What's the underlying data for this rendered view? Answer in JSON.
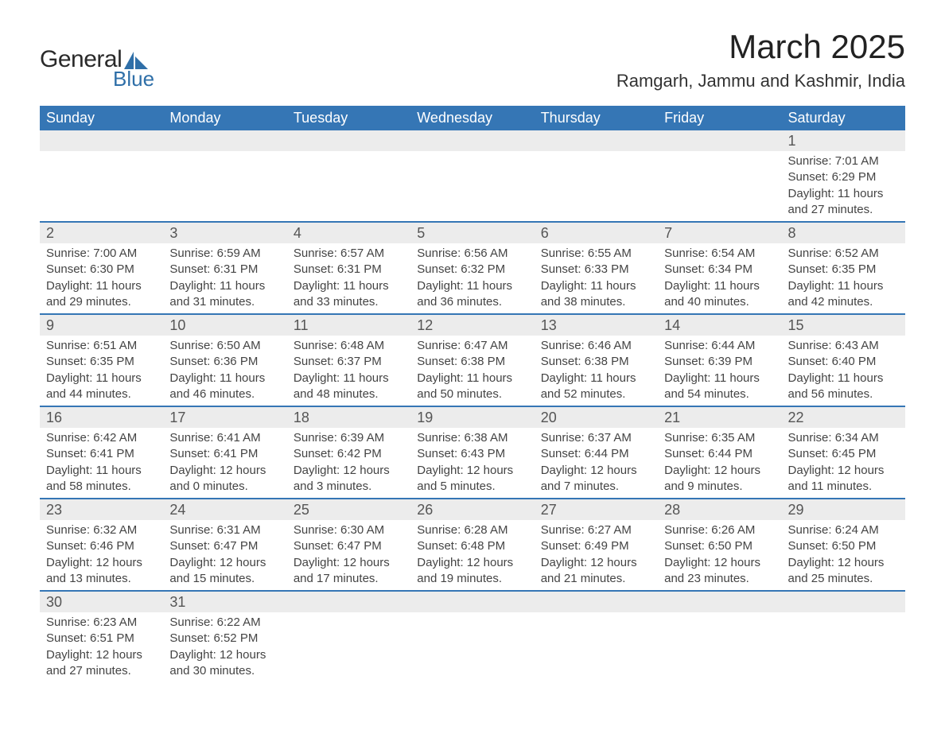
{
  "logo": {
    "text1": "General",
    "text2": "Blue"
  },
  "title": "March 2025",
  "subtitle": "Ramgarh, Jammu and Kashmir, India",
  "colors": {
    "header_bg": "#3576b5",
    "header_fg": "#ffffff",
    "daynum_bg": "#ececec",
    "row_border": "#3576b5",
    "text": "#3a3a3a",
    "logo_blue": "#2f6fa8"
  },
  "weekdays": [
    "Sunday",
    "Monday",
    "Tuesday",
    "Wednesday",
    "Thursday",
    "Friday",
    "Saturday"
  ],
  "weeks": [
    {
      "days": [
        {
          "n": "",
          "sunrise": "",
          "sunset": "",
          "daylight": ""
        },
        {
          "n": "",
          "sunrise": "",
          "sunset": "",
          "daylight": ""
        },
        {
          "n": "",
          "sunrise": "",
          "sunset": "",
          "daylight": ""
        },
        {
          "n": "",
          "sunrise": "",
          "sunset": "",
          "daylight": ""
        },
        {
          "n": "",
          "sunrise": "",
          "sunset": "",
          "daylight": ""
        },
        {
          "n": "",
          "sunrise": "",
          "sunset": "",
          "daylight": ""
        },
        {
          "n": "1",
          "sunrise": "Sunrise: 7:01 AM",
          "sunset": "Sunset: 6:29 PM",
          "daylight": "Daylight: 11 hours and 27 minutes."
        }
      ]
    },
    {
      "days": [
        {
          "n": "2",
          "sunrise": "Sunrise: 7:00 AM",
          "sunset": "Sunset: 6:30 PM",
          "daylight": "Daylight: 11 hours and 29 minutes."
        },
        {
          "n": "3",
          "sunrise": "Sunrise: 6:59 AM",
          "sunset": "Sunset: 6:31 PM",
          "daylight": "Daylight: 11 hours and 31 minutes."
        },
        {
          "n": "4",
          "sunrise": "Sunrise: 6:57 AM",
          "sunset": "Sunset: 6:31 PM",
          "daylight": "Daylight: 11 hours and 33 minutes."
        },
        {
          "n": "5",
          "sunrise": "Sunrise: 6:56 AM",
          "sunset": "Sunset: 6:32 PM",
          "daylight": "Daylight: 11 hours and 36 minutes."
        },
        {
          "n": "6",
          "sunrise": "Sunrise: 6:55 AM",
          "sunset": "Sunset: 6:33 PM",
          "daylight": "Daylight: 11 hours and 38 minutes."
        },
        {
          "n": "7",
          "sunrise": "Sunrise: 6:54 AM",
          "sunset": "Sunset: 6:34 PM",
          "daylight": "Daylight: 11 hours and 40 minutes."
        },
        {
          "n": "8",
          "sunrise": "Sunrise: 6:52 AM",
          "sunset": "Sunset: 6:35 PM",
          "daylight": "Daylight: 11 hours and 42 minutes."
        }
      ]
    },
    {
      "days": [
        {
          "n": "9",
          "sunrise": "Sunrise: 6:51 AM",
          "sunset": "Sunset: 6:35 PM",
          "daylight": "Daylight: 11 hours and 44 minutes."
        },
        {
          "n": "10",
          "sunrise": "Sunrise: 6:50 AM",
          "sunset": "Sunset: 6:36 PM",
          "daylight": "Daylight: 11 hours and 46 minutes."
        },
        {
          "n": "11",
          "sunrise": "Sunrise: 6:48 AM",
          "sunset": "Sunset: 6:37 PM",
          "daylight": "Daylight: 11 hours and 48 minutes."
        },
        {
          "n": "12",
          "sunrise": "Sunrise: 6:47 AM",
          "sunset": "Sunset: 6:38 PM",
          "daylight": "Daylight: 11 hours and 50 minutes."
        },
        {
          "n": "13",
          "sunrise": "Sunrise: 6:46 AM",
          "sunset": "Sunset: 6:38 PM",
          "daylight": "Daylight: 11 hours and 52 minutes."
        },
        {
          "n": "14",
          "sunrise": "Sunrise: 6:44 AM",
          "sunset": "Sunset: 6:39 PM",
          "daylight": "Daylight: 11 hours and 54 minutes."
        },
        {
          "n": "15",
          "sunrise": "Sunrise: 6:43 AM",
          "sunset": "Sunset: 6:40 PM",
          "daylight": "Daylight: 11 hours and 56 minutes."
        }
      ]
    },
    {
      "days": [
        {
          "n": "16",
          "sunrise": "Sunrise: 6:42 AM",
          "sunset": "Sunset: 6:41 PM",
          "daylight": "Daylight: 11 hours and 58 minutes."
        },
        {
          "n": "17",
          "sunrise": "Sunrise: 6:41 AM",
          "sunset": "Sunset: 6:41 PM",
          "daylight": "Daylight: 12 hours and 0 minutes."
        },
        {
          "n": "18",
          "sunrise": "Sunrise: 6:39 AM",
          "sunset": "Sunset: 6:42 PM",
          "daylight": "Daylight: 12 hours and 3 minutes."
        },
        {
          "n": "19",
          "sunrise": "Sunrise: 6:38 AM",
          "sunset": "Sunset: 6:43 PM",
          "daylight": "Daylight: 12 hours and 5 minutes."
        },
        {
          "n": "20",
          "sunrise": "Sunrise: 6:37 AM",
          "sunset": "Sunset: 6:44 PM",
          "daylight": "Daylight: 12 hours and 7 minutes."
        },
        {
          "n": "21",
          "sunrise": "Sunrise: 6:35 AM",
          "sunset": "Sunset: 6:44 PM",
          "daylight": "Daylight: 12 hours and 9 minutes."
        },
        {
          "n": "22",
          "sunrise": "Sunrise: 6:34 AM",
          "sunset": "Sunset: 6:45 PM",
          "daylight": "Daylight: 12 hours and 11 minutes."
        }
      ]
    },
    {
      "days": [
        {
          "n": "23",
          "sunrise": "Sunrise: 6:32 AM",
          "sunset": "Sunset: 6:46 PM",
          "daylight": "Daylight: 12 hours and 13 minutes."
        },
        {
          "n": "24",
          "sunrise": "Sunrise: 6:31 AM",
          "sunset": "Sunset: 6:47 PM",
          "daylight": "Daylight: 12 hours and 15 minutes."
        },
        {
          "n": "25",
          "sunrise": "Sunrise: 6:30 AM",
          "sunset": "Sunset: 6:47 PM",
          "daylight": "Daylight: 12 hours and 17 minutes."
        },
        {
          "n": "26",
          "sunrise": "Sunrise: 6:28 AM",
          "sunset": "Sunset: 6:48 PM",
          "daylight": "Daylight: 12 hours and 19 minutes."
        },
        {
          "n": "27",
          "sunrise": "Sunrise: 6:27 AM",
          "sunset": "Sunset: 6:49 PM",
          "daylight": "Daylight: 12 hours and 21 minutes."
        },
        {
          "n": "28",
          "sunrise": "Sunrise: 6:26 AM",
          "sunset": "Sunset: 6:50 PM",
          "daylight": "Daylight: 12 hours and 23 minutes."
        },
        {
          "n": "29",
          "sunrise": "Sunrise: 6:24 AM",
          "sunset": "Sunset: 6:50 PM",
          "daylight": "Daylight: 12 hours and 25 minutes."
        }
      ]
    },
    {
      "days": [
        {
          "n": "30",
          "sunrise": "Sunrise: 6:23 AM",
          "sunset": "Sunset: 6:51 PM",
          "daylight": "Daylight: 12 hours and 27 minutes."
        },
        {
          "n": "31",
          "sunrise": "Sunrise: 6:22 AM",
          "sunset": "Sunset: 6:52 PM",
          "daylight": "Daylight: 12 hours and 30 minutes."
        },
        {
          "n": "",
          "sunrise": "",
          "sunset": "",
          "daylight": ""
        },
        {
          "n": "",
          "sunrise": "",
          "sunset": "",
          "daylight": ""
        },
        {
          "n": "",
          "sunrise": "",
          "sunset": "",
          "daylight": ""
        },
        {
          "n": "",
          "sunrise": "",
          "sunset": "",
          "daylight": ""
        },
        {
          "n": "",
          "sunrise": "",
          "sunset": "",
          "daylight": ""
        }
      ]
    }
  ]
}
